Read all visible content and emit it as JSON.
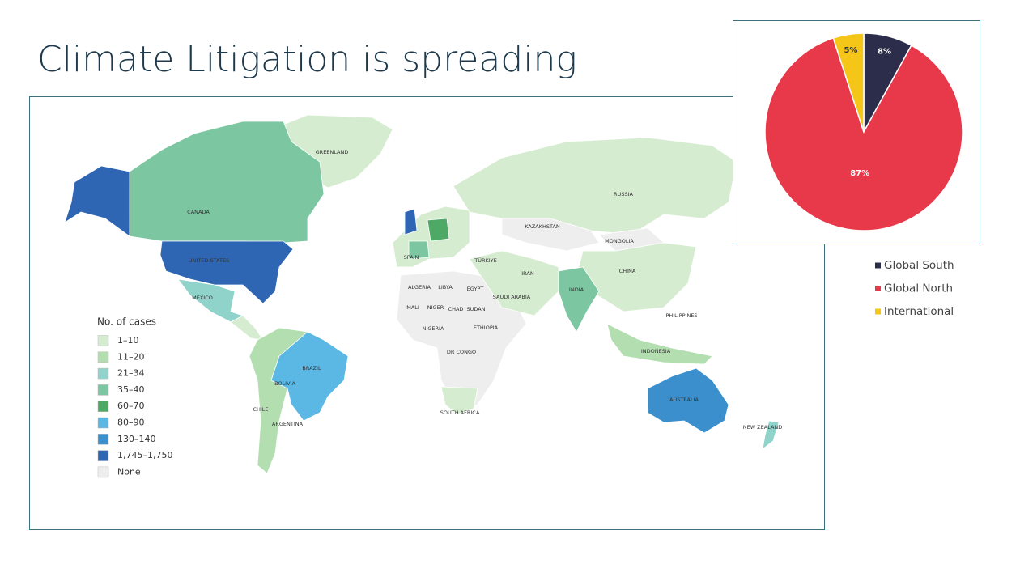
{
  "title": "Climate Litigation is spreading",
  "map": {
    "legend_title": "No. of cases",
    "legend": [
      {
        "label": "1–10",
        "color": "#d6ecd0"
      },
      {
        "label": "11–20",
        "color": "#b3dfb0"
      },
      {
        "label": "21–34",
        "color": "#8fd3cb"
      },
      {
        "label": "35–40",
        "color": "#7cc7a2"
      },
      {
        "label": "60–70",
        "color": "#4ea866"
      },
      {
        "label": "80–90",
        "color": "#5bb7e3"
      },
      {
        "label": "130–140",
        "color": "#3a8fcc"
      },
      {
        "label": "1,745–1,750",
        "color": "#2e66b3"
      },
      {
        "label": "None",
        "color": "#eeeeee"
      }
    ],
    "labels": [
      "GREENLAND",
      "CANADA",
      "UNITED STATES",
      "MEXICO",
      "BRAZIL",
      "BOLIVIA",
      "CHILE",
      "ARGENTINA",
      "RUSSIA",
      "KAZAKHSTAN",
      "MONGOLIA",
      "CHINA",
      "INDIA",
      "INDONESIA",
      "PHILIPPINES",
      "AUSTRALIA",
      "NEW ZEALAND",
      "ALGERIA",
      "LIBYA",
      "EGYPT",
      "MALI",
      "NIGER",
      "CHAD",
      "SUDAN",
      "NIGERIA",
      "ETHIOPIA",
      "DR CONGO",
      "SOUTH AFRICA",
      "SAUDI ARABIA",
      "IRAN",
      "TÜRKIYE",
      "SPAIN"
    ]
  },
  "chart_data": {
    "type": "pie",
    "categories": [
      "Global South",
      "Global North",
      "International"
    ],
    "values": [
      8,
      87,
      5
    ],
    "value_labels": [
      "8%",
      "87%",
      "5%"
    ],
    "colors": [
      "#2b2d4a",
      "#e8394a",
      "#f5c518"
    ]
  }
}
